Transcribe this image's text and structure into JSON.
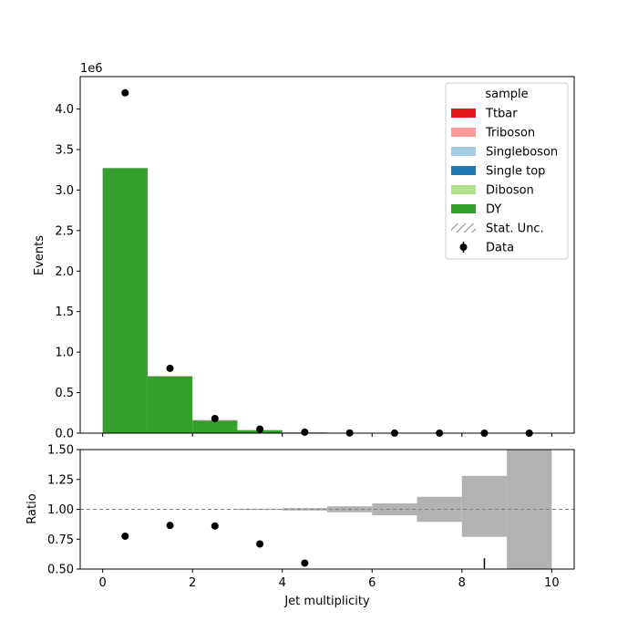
{
  "chart_data": [
    {
      "type": "bar",
      "stacked": true,
      "ylabel": "Events",
      "y_scale_label": "1e6",
      "xlim": [
        -0.5,
        10.5
      ],
      "ylim": [
        0,
        4.4
      ],
      "yticks": [
        0.0,
        0.5,
        1.0,
        1.5,
        2.0,
        2.5,
        3.0,
        3.5,
        4.0
      ],
      "ytick_labels": [
        "0.0",
        "0.5",
        "1.0",
        "1.5",
        "2.0",
        "2.5",
        "3.0",
        "3.5",
        "4.0"
      ],
      "bin_edges": [
        0,
        1,
        2,
        3,
        4,
        5,
        6,
        7,
        8,
        9,
        10
      ],
      "series": [
        {
          "name": "DY",
          "color": "#33a02c",
          "values": [
            3.27,
            0.7,
            0.155,
            0.035,
            0.008,
            0.002,
            0.0005,
            0.0001,
            2e-05,
            5e-06
          ]
        },
        {
          "name": "Diboson",
          "color": "#b2df8a",
          "values": [
            0.001,
            0.001,
            0.0005,
            0.0002,
            0.0001,
            0,
            0,
            0,
            0,
            0
          ]
        },
        {
          "name": "Single top",
          "color": "#1f78b4",
          "values": [
            0.0005,
            0.001,
            0.001,
            0.0005,
            0.0002,
            0.0001,
            0,
            0,
            0,
            0
          ]
        },
        {
          "name": "Singleboson",
          "color": "#a6cee3",
          "values": [
            0.002,
            0.001,
            0.0005,
            0.0001,
            0,
            0,
            0,
            0,
            0,
            0
          ]
        },
        {
          "name": "Triboson",
          "color": "#fb9a99",
          "values": [
            0,
            0,
            0,
            0,
            0,
            0,
            0,
            0,
            0,
            0
          ]
        },
        {
          "name": "Ttbar",
          "color": "#e31a1c",
          "values": [
            0.0005,
            0.002,
            0.003,
            0.002,
            0.001,
            0.0005,
            0.0001,
            0,
            0,
            0
          ]
        }
      ],
      "data_points": {
        "name": "Data",
        "x": [
          0.5,
          1.5,
          2.5,
          3.5,
          4.5,
          5.5,
          6.5,
          7.5,
          8.5,
          9.5
        ],
        "y": [
          4.2,
          0.8,
          0.18,
          0.05,
          0.012,
          0.003,
          0.0008,
          0.0002,
          5e-05,
          1e-05
        ]
      },
      "legend": {
        "title": "sample",
        "position": "top-right",
        "entries": [
          {
            "label": "Ttbar",
            "kind": "patch",
            "color": "#e31a1c"
          },
          {
            "label": "Triboson",
            "kind": "patch",
            "color": "#fb9a99"
          },
          {
            "label": "Singleboson",
            "kind": "patch",
            "color": "#a6cee3"
          },
          {
            "label": "Single top",
            "kind": "patch",
            "color": "#1f78b4"
          },
          {
            "label": "Diboson",
            "kind": "patch",
            "color": "#b2df8a"
          },
          {
            "label": "DY",
            "kind": "patch",
            "color": "#33a02c"
          },
          {
            "label": "Stat. Unc.",
            "kind": "hatch",
            "color": "#888888"
          },
          {
            "label": "Data",
            "kind": "marker",
            "color": "#000000"
          }
        ]
      }
    },
    {
      "type": "scatter",
      "xlabel": "Jet multiplicity",
      "ylabel": "Ratio",
      "xlim": [
        -0.5,
        10.5
      ],
      "ylim": [
        0.5,
        1.5
      ],
      "xticks": [
        0,
        2,
        4,
        6,
        8,
        10
      ],
      "xtick_labels": [
        "0",
        "2",
        "4",
        "6",
        "8",
        "10"
      ],
      "yticks": [
        0.5,
        0.75,
        1.0,
        1.25,
        1.5
      ],
      "ytick_labels": [
        "0.50",
        "0.75",
        "1.00",
        "1.25",
        "1.50"
      ],
      "reference_line": 1.0,
      "ratio_points": {
        "x": [
          0.5,
          1.5,
          2.5,
          3.5,
          4.5
        ],
        "y": [
          0.775,
          0.865,
          0.86,
          0.71,
          0.55
        ]
      },
      "error_bar": {
        "x": 8.5,
        "low": 0.5,
        "high": 0.59
      },
      "uncertainty_band": {
        "color": "#b2b2b2",
        "bins": [
          {
            "x0": 3,
            "x1": 4,
            "low": 0.995,
            "high": 1.005
          },
          {
            "x0": 4,
            "x1": 5,
            "low": 0.99,
            "high": 1.01
          },
          {
            "x0": 5,
            "x1": 6,
            "low": 0.975,
            "high": 1.025
          },
          {
            "x0": 6,
            "x1": 7,
            "low": 0.95,
            "high": 1.05
          },
          {
            "x0": 7,
            "x1": 8,
            "low": 0.895,
            "high": 1.105
          },
          {
            "x0": 8,
            "x1": 9,
            "low": 0.77,
            "high": 1.28
          },
          {
            "x0": 9,
            "x1": 10,
            "low": 0.5,
            "high": 1.5
          }
        ]
      }
    }
  ]
}
